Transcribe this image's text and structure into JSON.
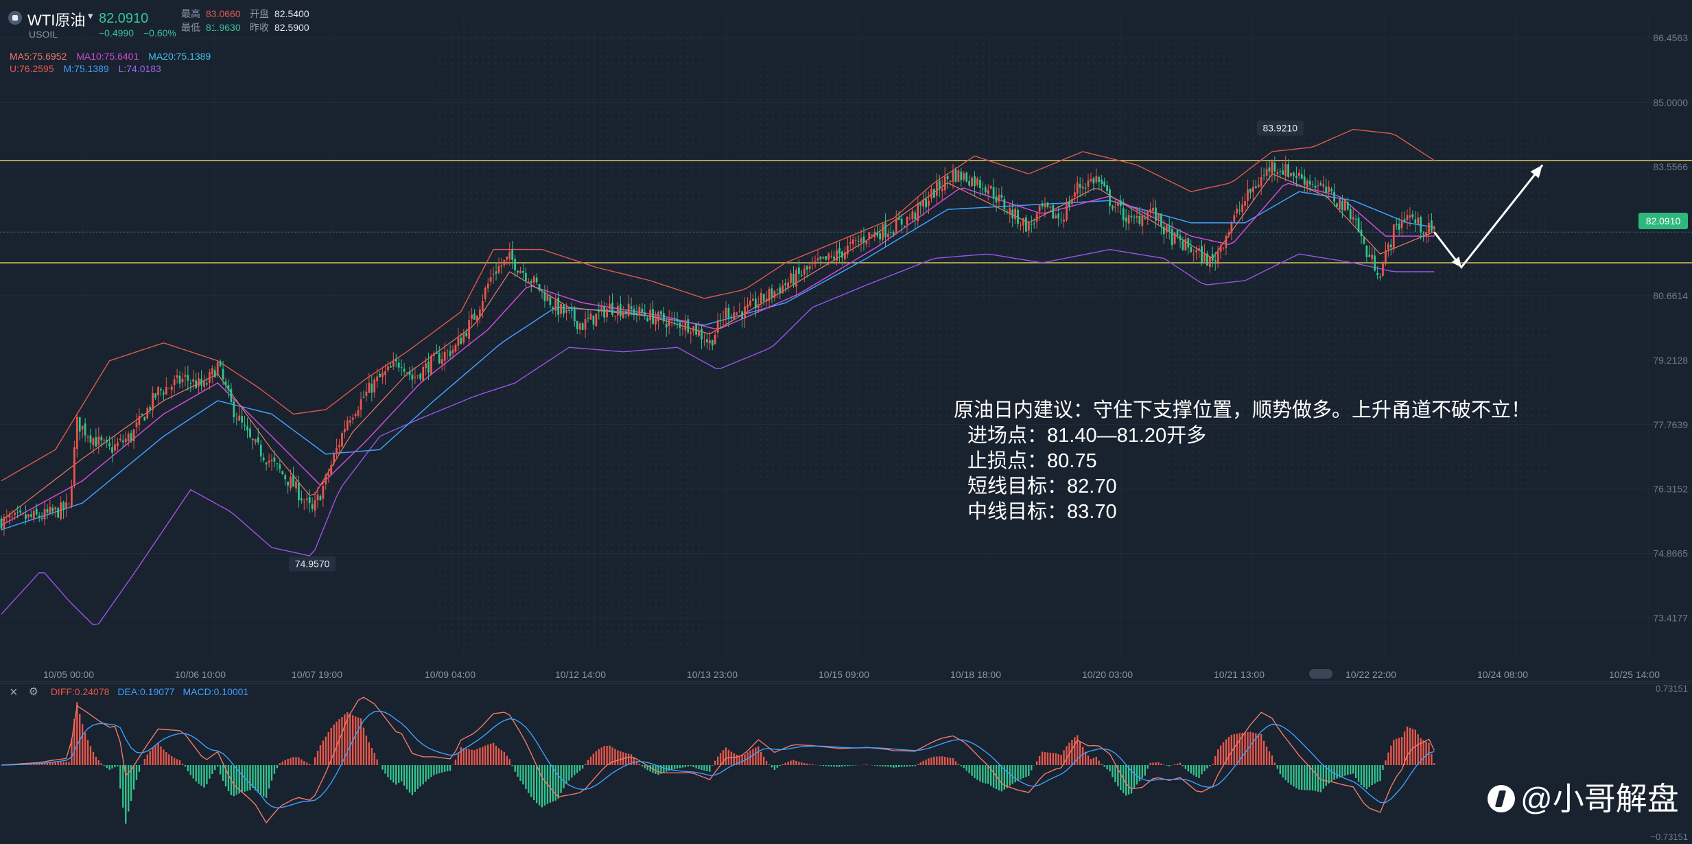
{
  "header": {
    "symbol": "WTI原油",
    "code": "USOIL",
    "last_price": "82.0910",
    "change": "−0.4990",
    "change_pct": "−0.60%",
    "high_label": "最高",
    "high": "83.0660",
    "open_label": "开盘",
    "open": "82.5400",
    "low_label": "最低",
    "low": "81.9630",
    "prev_close_label": "昨收",
    "prev_close": "82.5900"
  },
  "indicators": {
    "ma5": "MA5:75.6952",
    "ma10": "MA10:75.6401",
    "ma20": "MA20:75.1389",
    "boll_u": "U:76.2595",
    "boll_m": "M:75.1389",
    "boll_l": "L:74.0183"
  },
  "annotation": {
    "line1": "原油日内建议：守住下支撑位置，顺势做多。上升甬道不破不立！",
    "line2": "进场点：81.40—81.20开多",
    "line3": "止损点：80.75",
    "line4": "短线目标：82.70",
    "line5": "中线目标：83.70"
  },
  "macd": {
    "diff": "DIFF:0.24078",
    "dea": "DEA:0.19077",
    "macd": "MACD:0.10001"
  },
  "watermark": "@小哥解盘",
  "colors": {
    "bg": "#19222f",
    "up": "#e8574b",
    "down": "#31c48d",
    "ma5": "#f07a6a",
    "ma10": "#d14bd8",
    "ma20": "#3fa0ff",
    "boll_u": "#e2584c",
    "boll_l": "#9b54e8",
    "support_line": "#d8c85a",
    "arrow": "#ffffff"
  },
  "chart_data": {
    "type": "candlestick",
    "instrument": "WTI原油 USOIL",
    "ylim": [
      72.5,
      87.0
    ],
    "y_ticks": [
      "86.4563",
      "85.0000",
      "83.5566",
      "82.0910",
      "80.6614",
      "79.2128",
      "77.7639",
      "76.3152",
      "74.8665",
      "73.4177"
    ],
    "x_ticks": [
      "10/05 00:00",
      "10/06 10:00",
      "10/07 19:00",
      "10/09 04:00",
      "10/12 14:00",
      "10/13 23:00",
      "10/15 09:00",
      "10/18 18:00",
      "10/20 03:00",
      "10/21 13:00",
      "10/22 22:00",
      "10/24 08:00",
      "10/25 14:00"
    ],
    "close_path": [
      [
        0,
        75.6
      ],
      [
        15,
        75.7
      ],
      [
        25,
        75.9
      ],
      [
        28,
        77.8
      ],
      [
        35,
        77.4
      ],
      [
        40,
        77.2
      ],
      [
        48,
        77.5
      ],
      [
        58,
        78.5
      ],
      [
        68,
        78.8
      ],
      [
        75,
        78.6
      ],
      [
        80,
        79.1
      ],
      [
        85,
        78.2
      ],
      [
        92,
        77.4
      ],
      [
        100,
        76.9
      ],
      [
        108,
        76.4
      ],
      [
        115,
        75.8
      ],
      [
        120,
        76.5
      ],
      [
        128,
        77.9
      ],
      [
        138,
        78.7
      ],
      [
        148,
        79.2
      ],
      [
        152,
        78.8
      ],
      [
        160,
        79.2
      ],
      [
        168,
        79.5
      ],
      [
        175,
        80.2
      ],
      [
        182,
        81.2
      ],
      [
        188,
        81.5
      ],
      [
        195,
        81.1
      ],
      [
        205,
        80.4
      ],
      [
        215,
        80.0
      ],
      [
        225,
        80.4
      ],
      [
        235,
        80.3
      ],
      [
        245,
        80.1
      ],
      [
        255,
        80.0
      ],
      [
        262,
        79.6
      ],
      [
        268,
        80.3
      ],
      [
        275,
        80.3
      ],
      [
        282,
        80.6
      ],
      [
        292,
        81.0
      ],
      [
        300,
        81.3
      ],
      [
        310,
        81.6
      ],
      [
        320,
        82.0
      ],
      [
        330,
        82.2
      ],
      [
        338,
        82.5
      ],
      [
        345,
        83.0
      ],
      [
        352,
        83.4
      ],
      [
        358,
        83.3
      ],
      [
        365,
        83.1
      ],
      [
        372,
        82.6
      ],
      [
        380,
        82.2
      ],
      [
        385,
        82.6
      ],
      [
        392,
        82.4
      ],
      [
        398,
        83.1
      ],
      [
        405,
        83.3
      ],
      [
        410,
        82.8
      ],
      [
        418,
        82.3
      ],
      [
        425,
        82.6
      ],
      [
        432,
        82.0
      ],
      [
        440,
        81.7
      ],
      [
        448,
        81.4
      ],
      [
        455,
        82.3
      ],
      [
        462,
        83.0
      ],
      [
        470,
        83.6
      ],
      [
        478,
        83.4
      ],
      [
        485,
        83.2
      ],
      [
        492,
        82.9
      ],
      [
        500,
        82.5
      ],
      [
        505,
        81.6
      ],
      [
        510,
        81.2
      ],
      [
        515,
        82.1
      ],
      [
        520,
        82.5
      ],
      [
        525,
        82.2
      ],
      [
        530,
        82.09
      ]
    ],
    "ma5_path": [
      [
        0,
        75.6
      ],
      [
        30,
        77.0
      ],
      [
        60,
        78.3
      ],
      [
        80,
        78.9
      ],
      [
        100,
        77.2
      ],
      [
        115,
        76.1
      ],
      [
        130,
        77.6
      ],
      [
        150,
        78.9
      ],
      [
        175,
        80.0
      ],
      [
        188,
        81.2
      ],
      [
        210,
        80.4
      ],
      [
        240,
        80.2
      ],
      [
        262,
        79.8
      ],
      [
        290,
        80.8
      ],
      [
        320,
        81.9
      ],
      [
        350,
        83.2
      ],
      [
        380,
        82.3
      ],
      [
        405,
        83.1
      ],
      [
        432,
        82.1
      ],
      [
        448,
        81.5
      ],
      [
        470,
        83.4
      ],
      [
        490,
        82.9
      ],
      [
        510,
        81.6
      ],
      [
        530,
        82.1
      ]
    ],
    "ma10_path": [
      [
        0,
        75.5
      ],
      [
        30,
        76.5
      ],
      [
        60,
        78.0
      ],
      [
        80,
        78.7
      ],
      [
        100,
        77.5
      ],
      [
        118,
        76.4
      ],
      [
        135,
        77.4
      ],
      [
        155,
        78.7
      ],
      [
        180,
        79.9
      ],
      [
        195,
        80.9
      ],
      [
        215,
        80.5
      ],
      [
        245,
        80.2
      ],
      [
        265,
        79.9
      ],
      [
        295,
        80.7
      ],
      [
        325,
        81.8
      ],
      [
        355,
        83.1
      ],
      [
        385,
        82.5
      ],
      [
        410,
        82.9
      ],
      [
        440,
        82.0
      ],
      [
        455,
        81.8
      ],
      [
        475,
        83.2
      ],
      [
        495,
        82.9
      ],
      [
        512,
        82.0
      ],
      [
        530,
        82.0
      ]
    ],
    "ma20_path": [
      [
        0,
        75.4
      ],
      [
        30,
        76.0
      ],
      [
        60,
        77.5
      ],
      [
        80,
        78.3
      ],
      [
        100,
        78.0
      ],
      [
        120,
        77.1
      ],
      [
        140,
        77.2
      ],
      [
        160,
        78.3
      ],
      [
        185,
        79.6
      ],
      [
        205,
        80.4
      ],
      [
        230,
        80.3
      ],
      [
        260,
        80.0
      ],
      [
        290,
        80.5
      ],
      [
        320,
        81.5
      ],
      [
        350,
        82.6
      ],
      [
        380,
        82.7
      ],
      [
        410,
        82.8
      ],
      [
        440,
        82.3
      ],
      [
        460,
        82.3
      ],
      [
        480,
        83.0
      ],
      [
        500,
        82.8
      ],
      [
        520,
        82.3
      ],
      [
        530,
        82.2
      ]
    ],
    "boll_upper_path": [
      [
        0,
        76.5
      ],
      [
        20,
        77.2
      ],
      [
        40,
        79.2
      ],
      [
        60,
        79.6
      ],
      [
        80,
        79.2
      ],
      [
        95,
        78.6
      ],
      [
        108,
        78.0
      ],
      [
        120,
        78.1
      ],
      [
        135,
        78.8
      ],
      [
        150,
        79.4
      ],
      [
        170,
        80.3
      ],
      [
        182,
        81.7
      ],
      [
        200,
        81.7
      ],
      [
        220,
        81.3
      ],
      [
        240,
        81.0
      ],
      [
        260,
        80.6
      ],
      [
        275,
        80.8
      ],
      [
        290,
        81.4
      ],
      [
        310,
        81.9
      ],
      [
        330,
        82.4
      ],
      [
        345,
        83.2
      ],
      [
        360,
        83.8
      ],
      [
        380,
        83.4
      ],
      [
        400,
        83.9
      ],
      [
        420,
        83.6
      ],
      [
        440,
        83.0
      ],
      [
        455,
        83.2
      ],
      [
        470,
        83.9
      ],
      [
        485,
        84.0
      ],
      [
        500,
        84.4
      ],
      [
        515,
        84.3
      ],
      [
        530,
        83.7
      ]
    ],
    "boll_lower_path": [
      [
        0,
        73.5
      ],
      [
        15,
        74.5
      ],
      [
        25,
        73.8
      ],
      [
        35,
        73.2
      ],
      [
        50,
        74.5
      ],
      [
        70,
        76.3
      ],
      [
        85,
        75.8
      ],
      [
        100,
        75.0
      ],
      [
        115,
        74.8
      ],
      [
        125,
        76.3
      ],
      [
        140,
        77.5
      ],
      [
        155,
        77.9
      ],
      [
        175,
        78.4
      ],
      [
        190,
        78.7
      ],
      [
        210,
        79.5
      ],
      [
        230,
        79.4
      ],
      [
        250,
        79.5
      ],
      [
        265,
        79.0
      ],
      [
        285,
        79.5
      ],
      [
        300,
        80.4
      ],
      [
        320,
        80.9
      ],
      [
        345,
        81.5
      ],
      [
        365,
        81.6
      ],
      [
        385,
        81.4
      ],
      [
        410,
        81.7
      ],
      [
        430,
        81.5
      ],
      [
        445,
        80.9
      ],
      [
        460,
        81.0
      ],
      [
        480,
        81.6
      ],
      [
        500,
        81.4
      ],
      [
        515,
        81.2
      ],
      [
        530,
        81.2
      ]
    ],
    "support_levels": [
      83.7,
      81.4
    ],
    "annotated_high": "83.9210",
    "annotated_low": "74.9570",
    "current_price": "82.0910",
    "forecast_path": [
      [
        530,
        82.09
      ],
      [
        540,
        81.3
      ],
      [
        570,
        83.6
      ]
    ]
  }
}
